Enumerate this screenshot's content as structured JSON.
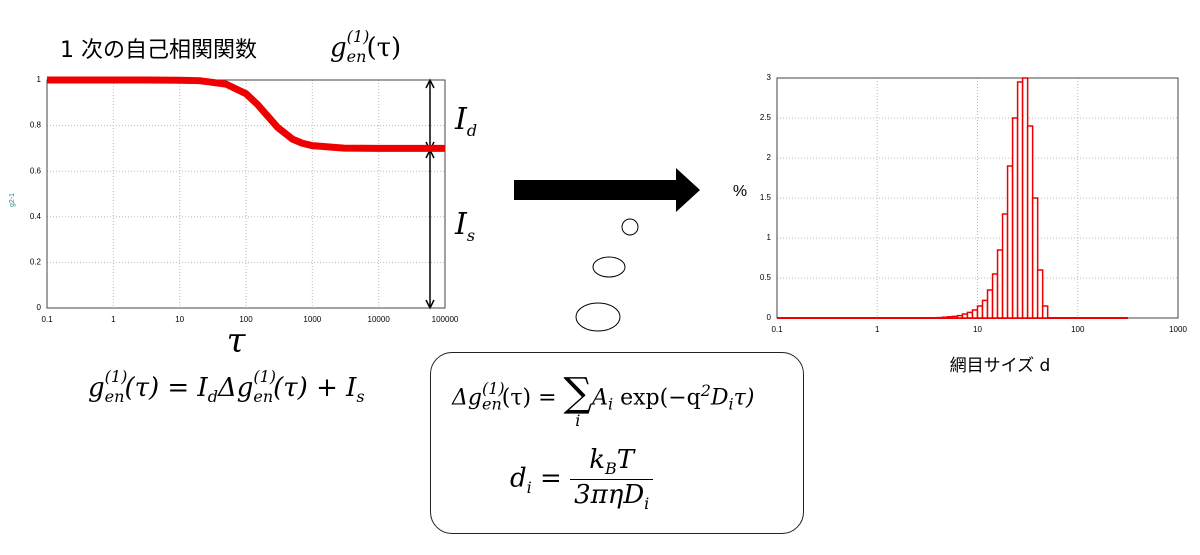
{
  "title": "1 次の自己相関関数",
  "title_formula": [
    "g",
    "en",
    "(1)",
    "(τ)"
  ],
  "label_id": [
    "I",
    "d"
  ],
  "label_is": [
    "I",
    "s"
  ],
  "formula_main": [
    "g",
    "en",
    "(1)",
    "(τ) = I",
    "d",
    "Δg",
    "en",
    "(1)",
    "(τ) + I",
    "s"
  ],
  "formula_sum": [
    "Δg",
    "en",
    "(1)",
    "(τ) = ",
    "∑",
    "i",
    "A",
    "i",
    " exp(−q",
    "2",
    "D",
    "i",
    "τ)"
  ],
  "formula_d": [
    "d",
    "i",
    " = ",
    "k",
    "B",
    "T",
    "3πηD",
    "i"
  ],
  "chart_data": [
    {
      "type": "line",
      "log_x": true,
      "grid": true,
      "color": "#ee0000",
      "xlabel": "τ",
      "ylabel": "g2-1",
      "x": [
        0.1,
        0.3,
        1,
        3,
        10,
        20,
        50,
        100,
        150,
        200,
        300,
        500,
        700,
        1000,
        3000,
        10000,
        100000
      ],
      "values": [
        1.0,
        1.0,
        1.0,
        1.0,
        0.999,
        0.997,
        0.982,
        0.94,
        0.892,
        0.85,
        0.792,
        0.741,
        0.723,
        0.712,
        0.701,
        0.7,
        0.7
      ],
      "xlim": [
        0.1,
        100000
      ],
      "xticks": [
        0.1,
        1,
        10,
        100,
        1000,
        10000,
        100000
      ],
      "ylim": [
        0,
        1
      ],
      "yticks": [
        0,
        0.2,
        0.4,
        0.6,
        0.8,
        1
      ]
    },
    {
      "type": "histogram",
      "log_x": true,
      "grid": true,
      "color": "#ee0000",
      "xlabel": "網目サイズ d",
      "ylabel": "%",
      "bins": [
        3.98,
        4.47,
        5.01,
        5.62,
        6.31,
        7.08,
        7.94,
        8.91,
        10,
        11.22,
        12.59,
        14.13,
        15.85,
        17.78,
        19.95,
        22.39,
        25.12,
        28.18,
        31.62,
        35.48,
        39.81,
        44.67,
        50.12
      ],
      "values": [
        0.005,
        0.01,
        0.015,
        0.02,
        0.03,
        0.05,
        0.07,
        0.1,
        0.15,
        0.22,
        0.35,
        0.55,
        0.85,
        1.3,
        1.9,
        2.5,
        2.95,
        3.0,
        2.4,
        1.5,
        0.6,
        0.15
      ],
      "xlim": [
        0.1,
        1000
      ],
      "xticks": [
        0.1,
        1,
        10,
        100,
        1000
      ],
      "ylim": [
        0,
        3
      ],
      "yticks": [
        0,
        0.5,
        1,
        1.5,
        2,
        2.5,
        3
      ]
    }
  ]
}
